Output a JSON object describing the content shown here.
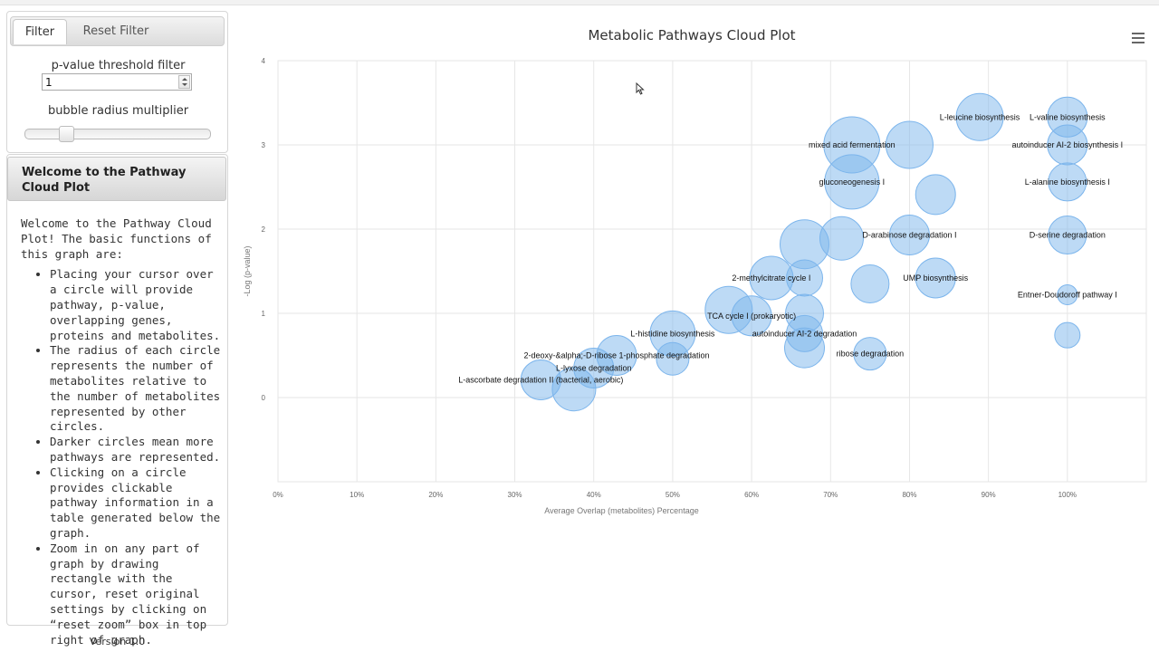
{
  "sidebar": {
    "tabs": [
      {
        "label": "Filter",
        "active": true
      },
      {
        "label": "Reset Filter",
        "active": false
      }
    ],
    "pvalue_label": "p-value threshold filter",
    "pvalue_value": "1",
    "radius_label": "bubble radius multiplier",
    "radius_level": 0.2,
    "welcome_title": "Welcome to the Pathway Cloud Plot",
    "welcome_intro": "Welcome to the Pathway Cloud Plot! The basic functions of this graph are:",
    "bullets": [
      "Placing your cursor over a circle will provide pathway, p-value, overlapping genes, proteins and metabolites.",
      "The radius of each circle represents the number of metabolites relative to the number of metabolites represented by other circles.",
      "Darker circles mean more pathways are represented.",
      "Clicking on a circle provides clickable pathway information in a table generated below the graph.",
      "Zoom in on any part of graph by drawing rectangle with the cursor, reset original settings by clicking on “reset zoom” box in top right of graph."
    ],
    "version": "Version 1.0"
  },
  "chart_data": {
    "type": "scatter",
    "title": "Metabolic Pathways Cloud Plot",
    "xlabel": "Average Overlap (metabolites) Percentage",
    "ylabel": "-Log (p-value)",
    "xlim": [
      0,
      110
    ],
    "ylim": [
      -1,
      4
    ],
    "x_ticks": [
      "0%",
      "10%",
      "20%",
      "30%",
      "40%",
      "50%",
      "60%",
      "70%",
      "80%",
      "90%",
      "100%"
    ],
    "y_ticks": [
      "0",
      "1",
      "2",
      "3",
      "4"
    ],
    "bubble_color": "#7cb5ec",
    "points": [
      {
        "x": 72.7,
        "y": 3.0,
        "r": 31,
        "label": "mixed acid fermentation"
      },
      {
        "x": 80.0,
        "y": 3.0,
        "r": 26,
        "label": ""
      },
      {
        "x": 88.9,
        "y": 3.33,
        "r": 26,
        "label": "L-leucine biosynthesis"
      },
      {
        "x": 100,
        "y": 3.33,
        "r": 22,
        "label": "L-valine biosynthesis"
      },
      {
        "x": 100,
        "y": 3.0,
        "r": 22,
        "label": "autoinducer AI-2 biosynthesis I"
      },
      {
        "x": 72.7,
        "y": 2.56,
        "r": 30,
        "label": "gluconeogenesis I"
      },
      {
        "x": 83.3,
        "y": 2.41,
        "r": 22,
        "label": ""
      },
      {
        "x": 100,
        "y": 2.56,
        "r": 21,
        "label": "L-alanine biosynthesis I"
      },
      {
        "x": 80.0,
        "y": 1.93,
        "r": 22,
        "label": "D-arabinose degradation I"
      },
      {
        "x": 100,
        "y": 1.93,
        "r": 21,
        "label": "D-serine degradation"
      },
      {
        "x": 71.4,
        "y": 1.89,
        "r": 24,
        "label": ""
      },
      {
        "x": 66.7,
        "y": 1.82,
        "r": 27,
        "label": ""
      },
      {
        "x": 62.5,
        "y": 1.42,
        "r": 24,
        "label": "2-methylcitrate cycle I"
      },
      {
        "x": 66.7,
        "y": 1.42,
        "r": 20,
        "label": ""
      },
      {
        "x": 75.0,
        "y": 1.35,
        "r": 21,
        "label": ""
      },
      {
        "x": 83.3,
        "y": 1.42,
        "r": 22,
        "label": "UMP biosynthesis"
      },
      {
        "x": 100,
        "y": 1.22,
        "r": 11,
        "label": "Entner-Doudoroff pathway I"
      },
      {
        "x": 57.1,
        "y": 1.04,
        "r": 26,
        "label": ""
      },
      {
        "x": 60.0,
        "y": 0.97,
        "r": 22,
        "label": "TCA cycle I (prokaryotic)"
      },
      {
        "x": 66.7,
        "y": 1.0,
        "r": 21,
        "label": ""
      },
      {
        "x": 66.7,
        "y": 0.76,
        "r": 20,
        "label": "autoinducer AI-2 degradation"
      },
      {
        "x": 50.0,
        "y": 0.76,
        "r": 25,
        "label": "L-histidine biosynthesis"
      },
      {
        "x": 100,
        "y": 0.74,
        "r": 14,
        "label": ""
      },
      {
        "x": 66.7,
        "y": 0.59,
        "r": 22,
        "label": ""
      },
      {
        "x": 75.0,
        "y": 0.52,
        "r": 18,
        "label": "ribose degradation"
      },
      {
        "x": 42.9,
        "y": 0.5,
        "r": 22,
        "label": "2-deoxy-&alpha;-D-ribose 1-phosphate degradation"
      },
      {
        "x": 50.0,
        "y": 0.46,
        "r": 18,
        "label": ""
      },
      {
        "x": 40.0,
        "y": 0.35,
        "r": 22,
        "label": "L-lyxose degradation"
      },
      {
        "x": 37.5,
        "y": 0.1,
        "r": 24,
        "label": ""
      },
      {
        "x": 33.3,
        "y": 0.21,
        "r": 22,
        "label": "L-ascorbate degradation II (bacterial, aerobic)"
      }
    ]
  }
}
